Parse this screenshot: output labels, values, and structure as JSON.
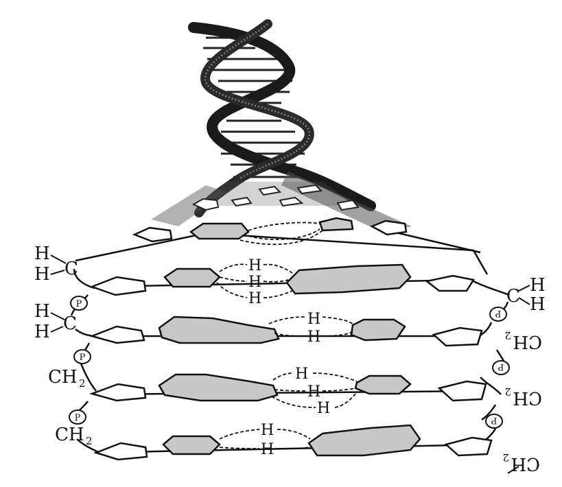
{
  "labels": {
    "h": "H",
    "c": "C",
    "ch2": "CH",
    "sub2": "2",
    "p": "P"
  },
  "colors": {
    "ink": "#111111",
    "fill": "#c8c8c8",
    "helix_dark": "#1a1a1a",
    "helix_mid": "#6a6a6a",
    "background": "#ffffff"
  }
}
